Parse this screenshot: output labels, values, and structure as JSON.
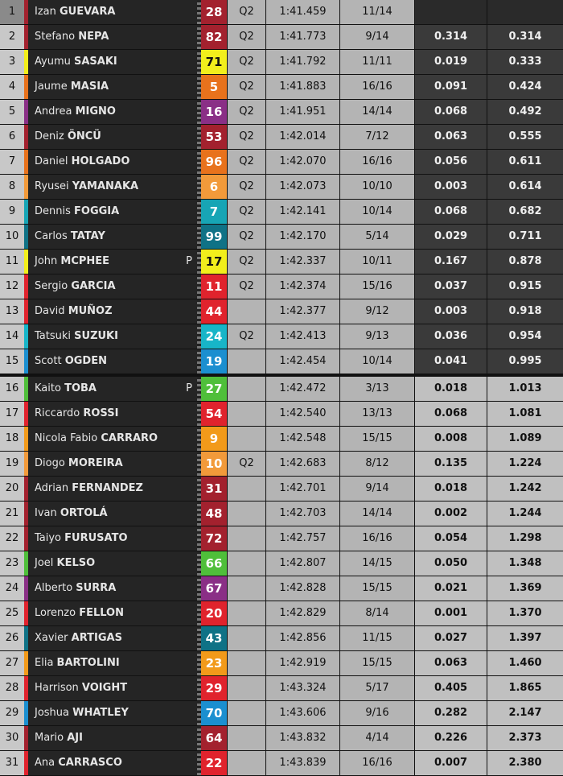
{
  "table": {
    "rows": [
      {
        "position": 1,
        "first_name": "Izan",
        "last_name": "GUEVARA",
        "number": 28,
        "color": "#a3212e",
        "session": "Q2",
        "time": "1:41.459",
        "laps": "11/14"
      },
      {
        "position": 2,
        "first_name": "Stefano",
        "last_name": "NEPA",
        "number": 82,
        "color": "#a3212e",
        "session": "Q2",
        "time": "1:41.773",
        "laps": "9/14",
        "gap": "0.314",
        "gap_first": "0.314"
      },
      {
        "position": 3,
        "first_name": "Ayumu",
        "last_name": "SASAKI",
        "number": 71,
        "color": "#f2ee1c",
        "session": "Q2",
        "time": "1:41.792",
        "laps": "11/11",
        "gap": "0.019",
        "gap_first": "0.333"
      },
      {
        "position": 4,
        "first_name": "Jaume",
        "last_name": "MASIA",
        "number": 5,
        "color": "#e8721c",
        "session": "Q2",
        "time": "1:41.883",
        "laps": "16/16",
        "gap": "0.091",
        "gap_first": "0.424"
      },
      {
        "position": 5,
        "first_name": "Andrea",
        "last_name": "MIGNO",
        "number": 16,
        "color": "#8a2f86",
        "session": "Q2",
        "time": "1:41.951",
        "laps": "14/14",
        "gap": "0.068",
        "gap_first": "0.492"
      },
      {
        "position": 6,
        "first_name": "Deniz",
        "last_name": "ÖNCÜ",
        "number": 53,
        "color": "#a3212e",
        "session": "Q2",
        "time": "1:42.014",
        "laps": "7/12",
        "gap": "0.063",
        "gap_first": "0.555"
      },
      {
        "position": 7,
        "first_name": "Daniel",
        "last_name": "HOLGADO",
        "number": 96,
        "color": "#e8721c",
        "session": "Q2",
        "time": "1:42.070",
        "laps": "16/16",
        "gap": "0.056",
        "gap_first": "0.611"
      },
      {
        "position": 8,
        "first_name": "Ryusei",
        "last_name": "YAMANAKA",
        "number": 6,
        "color": "#f29a3a",
        "session": "Q2",
        "time": "1:42.073",
        "laps": "10/10",
        "gap": "0.003",
        "gap_first": "0.614"
      },
      {
        "position": 9,
        "first_name": "Dennis",
        "last_name": "FOGGIA",
        "number": 7,
        "color": "#17a5b5",
        "session": "Q2",
        "time": "1:42.141",
        "laps": "10/14",
        "gap": "0.068",
        "gap_first": "0.682"
      },
      {
        "position": 10,
        "first_name": "Carlos",
        "last_name": "TATAY",
        "number": 99,
        "color": "#0f7286",
        "session": "Q2",
        "time": "1:42.170",
        "laps": "5/14",
        "gap": "0.029",
        "gap_first": "0.711"
      },
      {
        "position": 11,
        "first_name": "John",
        "last_name": "MCPHEE",
        "flag": "P",
        "number": 17,
        "color": "#f2ee1c",
        "session": "Q2",
        "time": "1:42.337",
        "laps": "10/11",
        "gap": "0.167",
        "gap_first": "0.878"
      },
      {
        "position": 12,
        "first_name": "Sergio",
        "last_name": "GARCIA",
        "number": 11,
        "color": "#e0232d",
        "session": "Q2",
        "time": "1:42.374",
        "laps": "15/16",
        "gap": "0.037",
        "gap_first": "0.915"
      },
      {
        "position": 13,
        "first_name": "David",
        "last_name": "MUÑOZ",
        "number": 44,
        "color": "#e0232d",
        "time": "1:42.377",
        "laps": "9/12",
        "gap": "0.003",
        "gap_first": "0.918"
      },
      {
        "position": 14,
        "first_name": "Tatsuki",
        "last_name": "SUZUKI",
        "number": 24,
        "color": "#17b5c8",
        "session": "Q2",
        "time": "1:42.413",
        "laps": "9/13",
        "gap": "0.036",
        "gap_first": "0.954"
      },
      {
        "position": 15,
        "first_name": "Scott",
        "last_name": "OGDEN",
        "number": 19,
        "color": "#1b8fd0",
        "time": "1:42.454",
        "laps": "10/14",
        "gap": "0.041",
        "gap_first": "0.995"
      },
      {
        "position": 16,
        "first_name": "Kaito",
        "last_name": "TOBA",
        "flag": "P",
        "number": 27,
        "color": "#4fbf3a",
        "time": "1:42.472",
        "laps": "3/13",
        "gap": "0.018",
        "gap_first": "1.013"
      },
      {
        "position": 17,
        "first_name": "Riccardo",
        "last_name": "ROSSI",
        "number": 54,
        "color": "#e0232d",
        "time": "1:42.540",
        "laps": "13/13",
        "gap": "0.068",
        "gap_first": "1.081"
      },
      {
        "position": 18,
        "first_name": "Nicola Fabio",
        "last_name": "CARRARO",
        "number": 9,
        "color": "#f29a1a",
        "time": "1:42.548",
        "laps": "15/15",
        "gap": "0.008",
        "gap_first": "1.089"
      },
      {
        "position": 19,
        "first_name": "Diogo",
        "last_name": "MOREIRA",
        "number": 10,
        "color": "#f29a3a",
        "session": "Q2",
        "time": "1:42.683",
        "laps": "8/12",
        "gap": "0.135",
        "gap_first": "1.224"
      },
      {
        "position": 20,
        "first_name": "Adrian",
        "last_name": "FERNANDEZ",
        "number": 31,
        "color": "#a3212e",
        "time": "1:42.701",
        "laps": "9/14",
        "gap": "0.018",
        "gap_first": "1.242"
      },
      {
        "position": 21,
        "first_name": "Ivan",
        "last_name": "ORTOLÁ",
        "number": 48,
        "color": "#a3212e",
        "time": "1:42.703",
        "laps": "14/14",
        "gap": "0.002",
        "gap_first": "1.244"
      },
      {
        "position": 22,
        "first_name": "Taiyo",
        "last_name": "FURUSATO",
        "number": 72,
        "color": "#a3212e",
        "time": "1:42.757",
        "laps": "16/16",
        "gap": "0.054",
        "gap_first": "1.298"
      },
      {
        "position": 23,
        "first_name": "Joel",
        "last_name": "KELSO",
        "number": 66,
        "color": "#4fbf3a",
        "time": "1:42.807",
        "laps": "14/15",
        "gap": "0.050",
        "gap_first": "1.348"
      },
      {
        "position": 24,
        "first_name": "Alberto",
        "last_name": "SURRA",
        "number": 67,
        "color": "#8a2f86",
        "time": "1:42.828",
        "laps": "15/15",
        "gap": "0.021",
        "gap_first": "1.369"
      },
      {
        "position": 25,
        "first_name": "Lorenzo",
        "last_name": "FELLON",
        "number": 20,
        "color": "#e0232d",
        "time": "1:42.829",
        "laps": "8/14",
        "gap": "0.001",
        "gap_first": "1.370"
      },
      {
        "position": 26,
        "first_name": "Xavier",
        "last_name": "ARTIGAS",
        "number": 43,
        "color": "#0f7286",
        "time": "1:42.856",
        "laps": "11/15",
        "gap": "0.027",
        "gap_first": "1.397"
      },
      {
        "position": 27,
        "first_name": "Elia",
        "last_name": "BARTOLINI",
        "number": 23,
        "color": "#f29a1a",
        "time": "1:42.919",
        "laps": "15/15",
        "gap": "0.063",
        "gap_first": "1.460"
      },
      {
        "position": 28,
        "first_name": "Harrison",
        "last_name": "VOIGHT",
        "number": 29,
        "color": "#e0232d",
        "time": "1:43.324",
        "laps": "5/17",
        "gap": "0.405",
        "gap_first": "1.865"
      },
      {
        "position": 29,
        "first_name": "Joshua",
        "last_name": "WHATLEY",
        "number": 70,
        "color": "#1b8fd0",
        "time": "1:43.606",
        "laps": "9/16",
        "gap": "0.282",
        "gap_first": "2.147"
      },
      {
        "position": 30,
        "first_name": "Mario",
        "last_name": "AJI",
        "number": 64,
        "color": "#a3212e",
        "time": "1:43.832",
        "laps": "4/14",
        "gap": "0.226",
        "gap_first": "2.373"
      },
      {
        "position": 31,
        "first_name": "Ana",
        "last_name": "CARRASCO",
        "number": 22,
        "color": "#e0232d",
        "time": "1:43.839",
        "laps": "16/16",
        "gap": "0.007",
        "gap_first": "2.380"
      }
    ]
  }
}
